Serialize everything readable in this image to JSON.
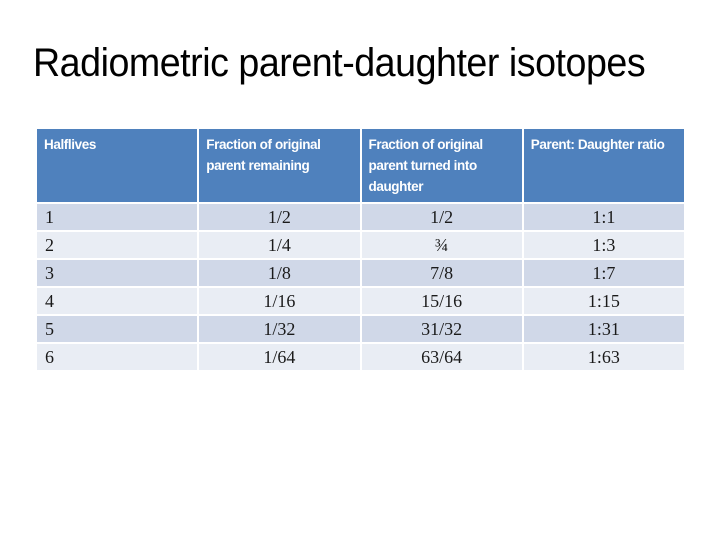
{
  "slide": {
    "title": "Radiometric parent-daughter isotopes"
  },
  "table": {
    "columns": [
      "Halflives",
      "Fraction of original parent remaining",
      "Fraction of original parent turned into daughter",
      "Parent: Daughter ratio"
    ],
    "rows": [
      [
        "1",
        "1/2",
        "1/2",
        "1:1"
      ],
      [
        "2",
        "1/4",
        "¾",
        "1:3"
      ],
      [
        "3",
        "1/8",
        "7/8",
        "1:7"
      ],
      [
        "4",
        "1/16",
        "15/16",
        "1:15"
      ],
      [
        "5",
        "1/32",
        "31/32",
        "1:31"
      ],
      [
        "6",
        "1/64",
        "63/64",
        "1:63"
      ]
    ],
    "colors": {
      "header_bg": "#4f81bd",
      "header_text": "#ffffff",
      "band_odd": "#d0d8e8",
      "band_even": "#e9edf4",
      "body_text": "#1a1a1a"
    }
  }
}
